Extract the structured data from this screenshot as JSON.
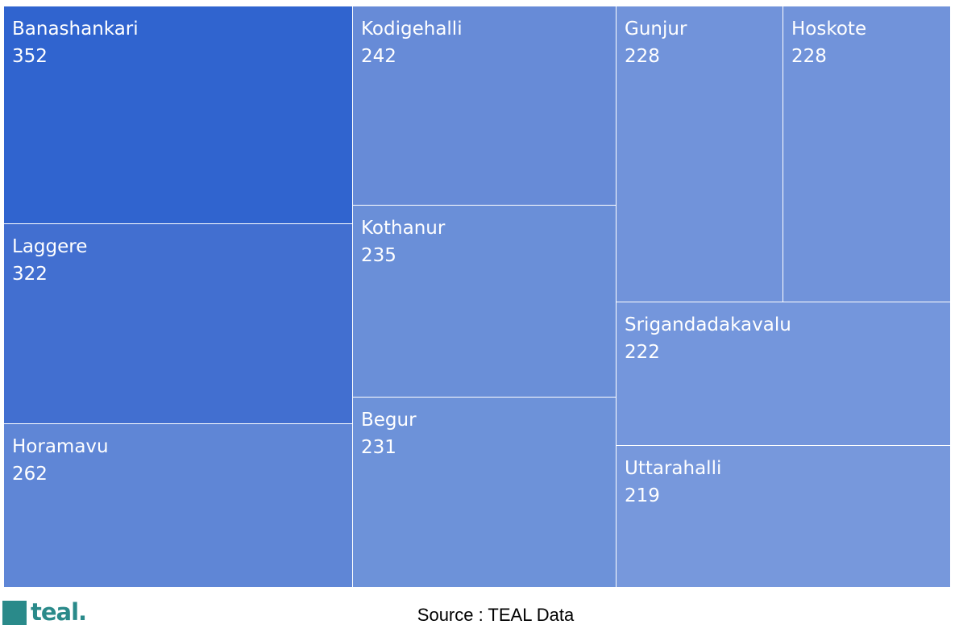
{
  "chart_data": {
    "type": "treemap",
    "title": "",
    "items": [
      {
        "name": "Banashankari",
        "value": 352,
        "color": "#3064cf"
      },
      {
        "name": "Laggere",
        "value": 322,
        "color": "#426fd0"
      },
      {
        "name": "Horamavu",
        "value": 262,
        "color": "#5f86d6"
      },
      {
        "name": "Kodigehalli",
        "value": 242,
        "color": "#678bd7"
      },
      {
        "name": "Kothanur",
        "value": 235,
        "color": "#6a8fd8"
      },
      {
        "name": "Begur",
        "value": 231,
        "color": "#6d92d9"
      },
      {
        "name": "Gunjur",
        "value": 228,
        "color": "#7193da"
      },
      {
        "name": "Hoskote",
        "value": 228,
        "color": "#7193da"
      },
      {
        "name": "Srigandadakavalu",
        "value": 222,
        "color": "#7496dc"
      },
      {
        "name": "Uttarahalli",
        "value": 219,
        "color": "#7798dc"
      }
    ]
  },
  "footer": {
    "source": "Source : TEAL Data",
    "logo_text": "teal."
  }
}
